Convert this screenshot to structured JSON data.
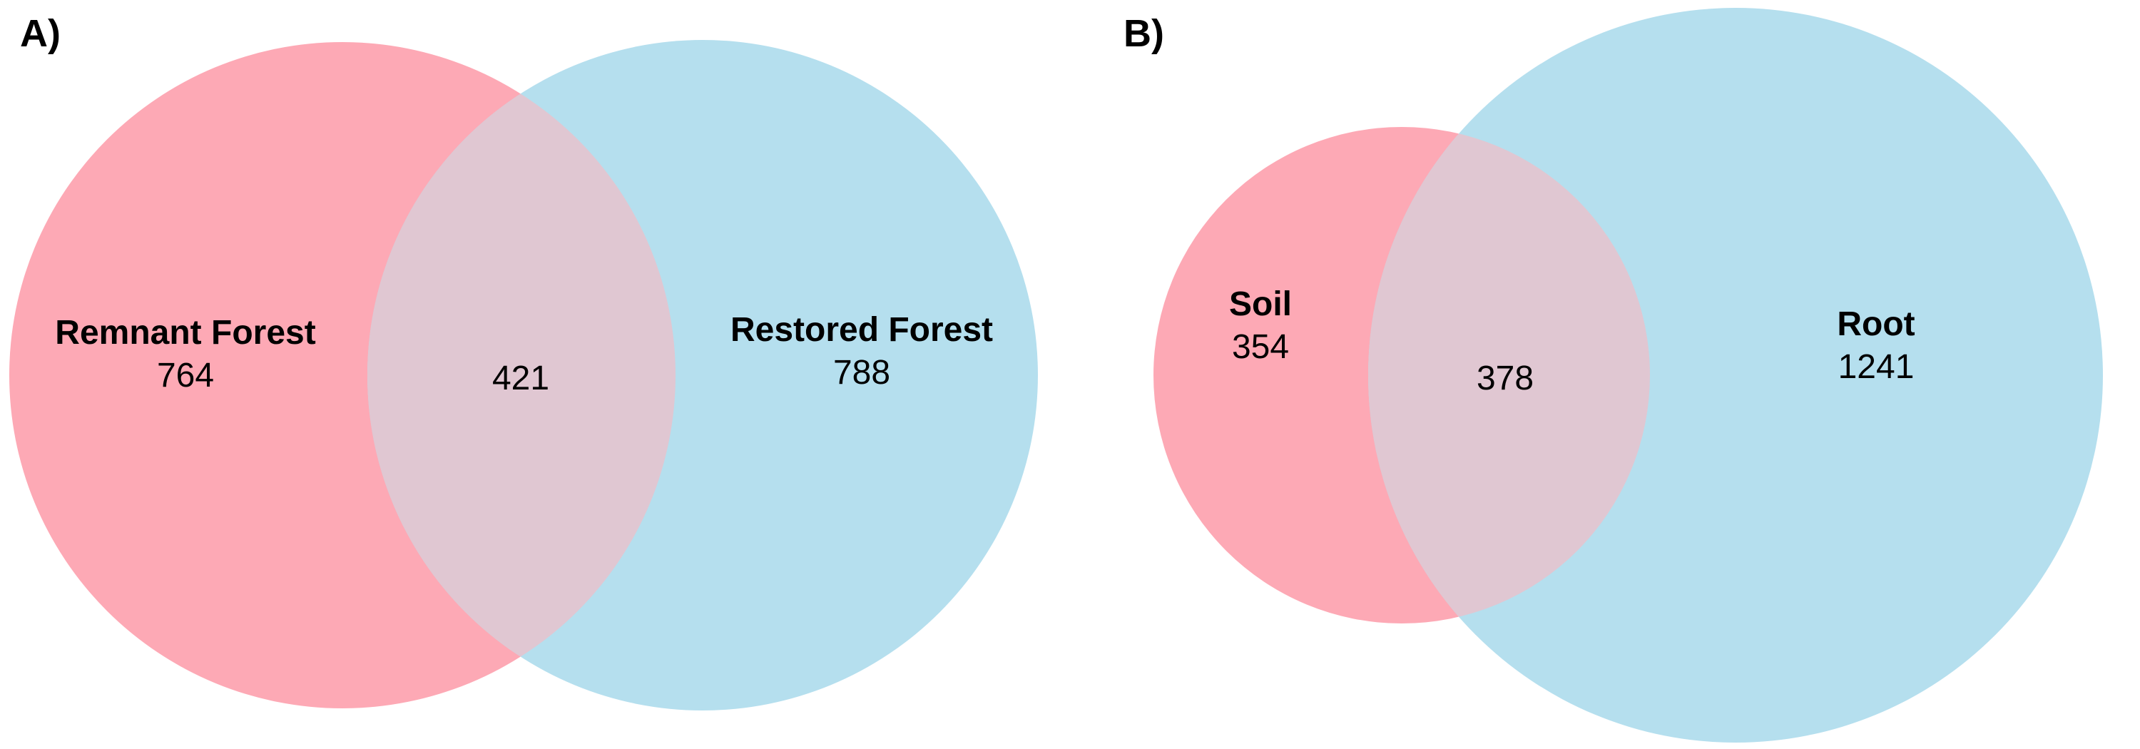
{
  "colors": {
    "set_a": "#fda9b5",
    "set_b": "#b5dfee",
    "overlap": "#e0c7d2"
  },
  "panels": [
    {
      "label": "A)",
      "set_a": {
        "name": "Remnant Forest",
        "count": "764"
      },
      "set_b": {
        "name": "Restored Forest",
        "count": "788"
      },
      "overlap": {
        "count": "421"
      }
    },
    {
      "label": "B)",
      "set_a": {
        "name": "Soil",
        "count": "354"
      },
      "set_b": {
        "name": "Root",
        "count": "1241"
      },
      "overlap": {
        "count": "378"
      }
    }
  ]
}
